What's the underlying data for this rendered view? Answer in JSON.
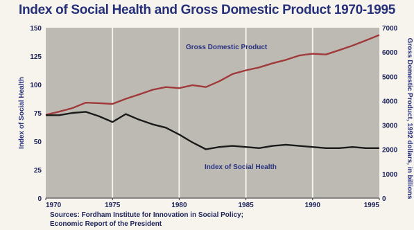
{
  "chart_data": {
    "type": "line",
    "title": "Index of Social Health and Gross Domestic Product 1970-1995",
    "ylabel_left": "Index of Social Health",
    "ylabel_right": "Gross Domestic Product, 1992 dollars, in billions",
    "x_ticks": [
      "1970",
      "1975",
      "1980",
      "1985",
      "1990",
      "1995"
    ],
    "left_ticks": [
      "0",
      "25",
      "50",
      "75",
      "100",
      "125",
      "150"
    ],
    "right_ticks": [
      "0",
      "1000",
      "2000",
      "3000",
      "4000",
      "5000",
      "6000",
      "7000"
    ],
    "xlim": [
      1970,
      1995
    ],
    "ylim_left": [
      0,
      150
    ],
    "ylim_right": [
      0,
      7000
    ],
    "grid": "vertical lines at 1975, 1980, 1985, 1990",
    "series": [
      {
        "name": "Gross Domestic Product",
        "axis": "right",
        "color": "#a03a3a",
        "x": [
          1970,
          1971,
          1972,
          1973,
          1974,
          1975,
          1976,
          1977,
          1978,
          1979,
          1980,
          1981,
          1982,
          1983,
          1984,
          1985,
          1986,
          1987,
          1988,
          1989,
          1990,
          1991,
          1992,
          1993,
          1994,
          1995
        ],
        "values": [
          3420,
          3550,
          3700,
          3920,
          3900,
          3870,
          4080,
          4260,
          4450,
          4560,
          4520,
          4640,
          4560,
          4800,
          5100,
          5250,
          5370,
          5540,
          5680,
          5860,
          5930,
          5900,
          6080,
          6270,
          6480,
          6700
        ]
      },
      {
        "name": "Index of Social Health",
        "axis": "left",
        "color": "#1a1a1a",
        "x": [
          1970,
          1971,
          1972,
          1973,
          1974,
          1975,
          1976,
          1977,
          1978,
          1979,
          1980,
          1981,
          1982,
          1983,
          1984,
          1985,
          1986,
          1987,
          1988,
          1989,
          1990,
          1991,
          1992,
          1993,
          1994,
          1995
        ],
        "values": [
          73,
          73,
          75,
          76,
          72,
          67,
          74,
          69,
          65,
          62,
          56,
          49,
          43,
          45,
          46,
          45,
          44,
          46,
          47,
          46,
          45,
          44,
          44,
          45,
          44,
          44
        ]
      }
    ],
    "colors": {
      "plot_background": "#bdbab4",
      "page_background": "#f6f4ec",
      "text": "#26307a"
    }
  },
  "sources": {
    "line1": "Sources: Fordham Institute for Innovation in Social Policy;",
    "line2": "Economic Report of the President"
  }
}
